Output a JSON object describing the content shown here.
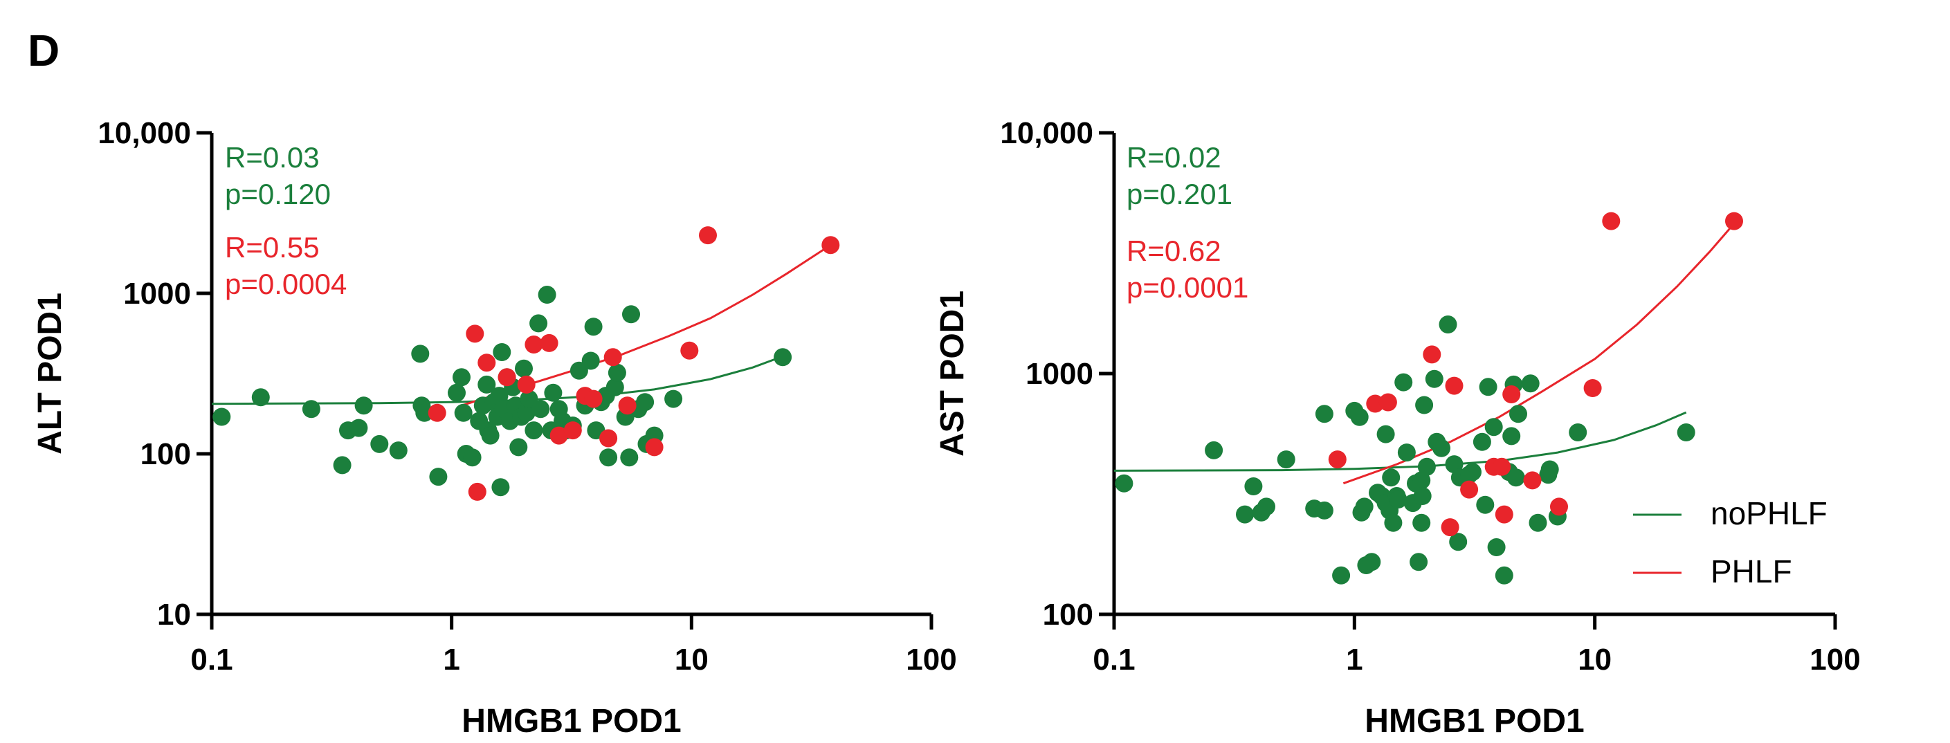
{
  "panel_label": "D",
  "colors": {
    "noPHLF": "#1b7f3c",
    "PHLF": "#e8252b",
    "axis": "#000000"
  },
  "chart_data": [
    {
      "id": "left",
      "type": "scatter",
      "xscale": "log",
      "yscale": "log",
      "xlabel": "HMGB1 POD1",
      "ylabel": "ALT POD1",
      "xlim": [
        0.1,
        100
      ],
      "ylim": [
        10,
        10000
      ],
      "xticks": [
        0.1,
        1,
        10,
        100
      ],
      "xtick_labels": [
        "0.1",
        "1",
        "10",
        "100"
      ],
      "yticks": [
        10,
        100,
        1000,
        10000
      ],
      "ytick_labels": [
        "10",
        "100",
        "1000",
        "10,000"
      ],
      "annotations": [
        {
          "series": "noPHLF",
          "lines": [
            "R=0.03",
            "p=0.120"
          ]
        },
        {
          "series": "PHLF",
          "lines": [
            "R=0.55",
            "p=0.0004"
          ]
        }
      ],
      "series": [
        {
          "name": "noPHLF",
          "points": [
            [
              0.11,
              170
            ],
            [
              0.16,
              225
            ],
            [
              0.26,
              190
            ],
            [
              0.35,
              85
            ],
            [
              0.37,
              140
            ],
            [
              0.41,
              145
            ],
            [
              0.43,
              200
            ],
            [
              0.5,
              115
            ],
            [
              0.6,
              105
            ],
            [
              0.74,
              420
            ],
            [
              0.75,
              200
            ],
            [
              0.77,
              180
            ],
            [
              0.88,
              72
            ],
            [
              1.05,
              240
            ],
            [
              1.1,
              300
            ],
            [
              1.12,
              180
            ],
            [
              1.15,
              100
            ],
            [
              1.22,
              95
            ],
            [
              1.3,
              160
            ],
            [
              1.35,
              200
            ],
            [
              1.4,
              270
            ],
            [
              1.42,
              140
            ],
            [
              1.45,
              130
            ],
            [
              1.5,
              210
            ],
            [
              1.55,
              170
            ],
            [
              1.58,
              230
            ],
            [
              1.6,
              62
            ],
            [
              1.62,
              430
            ],
            [
              1.65,
              190
            ],
            [
              1.7,
              300
            ],
            [
              1.75,
              160
            ],
            [
              1.8,
              260
            ],
            [
              1.85,
              200
            ],
            [
              1.9,
              110
            ],
            [
              1.95,
              170
            ],
            [
              2.0,
              340
            ],
            [
              2.05,
              180
            ],
            [
              2.1,
              220
            ],
            [
              2.2,
              140
            ],
            [
              2.3,
              650
            ],
            [
              2.35,
              190
            ],
            [
              2.5,
              980
            ],
            [
              2.6,
              140
            ],
            [
              2.65,
              240
            ],
            [
              2.8,
              190
            ],
            [
              2.9,
              160
            ],
            [
              3.0,
              140
            ],
            [
              3.2,
              150
            ],
            [
              3.4,
              330
            ],
            [
              3.6,
              200
            ],
            [
              3.8,
              380
            ],
            [
              3.9,
              620
            ],
            [
              4.0,
              140
            ],
            [
              4.2,
              210
            ],
            [
              4.4,
              230
            ],
            [
              4.5,
              95
            ],
            [
              4.8,
              260
            ],
            [
              4.9,
              320
            ],
            [
              5.3,
              170
            ],
            [
              5.5,
              95
            ],
            [
              5.6,
              740
            ],
            [
              6.0,
              190
            ],
            [
              6.4,
              210
            ],
            [
              6.5,
              115
            ],
            [
              7.0,
              130
            ],
            [
              8.4,
              220
            ],
            [
              24.0,
              400
            ]
          ],
          "fit": [
            [
              0.1,
              205
            ],
            [
              0.5,
              207
            ],
            [
              1,
              210
            ],
            [
              2,
              216
            ],
            [
              4,
              229
            ],
            [
              7,
              252
            ],
            [
              12,
              292
            ],
            [
              18,
              345
            ],
            [
              24,
              405
            ]
          ]
        },
        {
          "name": "PHLF",
          "points": [
            [
              0.87,
              180
            ],
            [
              1.25,
              560
            ],
            [
              1.28,
              58
            ],
            [
              1.4,
              370
            ],
            [
              1.7,
              300
            ],
            [
              2.05,
              270
            ],
            [
              2.2,
              480
            ],
            [
              2.55,
              490
            ],
            [
              2.8,
              130
            ],
            [
              3.2,
              140
            ],
            [
              3.6,
              230
            ],
            [
              3.9,
              220
            ],
            [
              4.5,
              125
            ],
            [
              4.7,
              400
            ],
            [
              5.4,
              200
            ],
            [
              7.0,
              110
            ],
            [
              9.8,
              440
            ],
            [
              11.7,
              2300
            ],
            [
              38.0,
              2000
            ]
          ],
          "fit": [
            [
              1.1,
              200
            ],
            [
              2,
              265
            ],
            [
              3,
              320
            ],
            [
              5,
              410
            ],
            [
              8,
              540
            ],
            [
              12,
              700
            ],
            [
              18,
              980
            ],
            [
              25,
              1330
            ],
            [
              38,
              2000
            ]
          ]
        }
      ]
    },
    {
      "id": "right",
      "type": "scatter",
      "xscale": "log",
      "yscale": "log",
      "xlabel": "HMGB1 POD1",
      "ylabel": "AST POD1",
      "xlim": [
        0.1,
        100
      ],
      "ylim": [
        100,
        10000
      ],
      "xticks": [
        0.1,
        1,
        10,
        100
      ],
      "xtick_labels": [
        "0.1",
        "1",
        "10",
        "100"
      ],
      "yticks": [
        100,
        1000,
        10000
      ],
      "ytick_labels": [
        "100",
        "1000",
        "10,000"
      ],
      "annotations": [
        {
          "series": "noPHLF",
          "lines": [
            "R=0.02",
            "p=0.201"
          ]
        },
        {
          "series": "PHLF",
          "lines": [
            "R=0.62",
            "p=0.0001"
          ]
        }
      ],
      "legend": {
        "position": "bottom-right",
        "entries": [
          "noPHLF",
          "PHLF"
        ]
      },
      "series": [
        {
          "name": "noPHLF",
          "points": [
            [
              0.11,
              350
            ],
            [
              0.26,
              480
            ],
            [
              0.35,
              260
            ],
            [
              0.38,
              340
            ],
            [
              0.41,
              265
            ],
            [
              0.43,
              280
            ],
            [
              0.52,
              440
            ],
            [
              0.68,
              275
            ],
            [
              0.75,
              270
            ],
            [
              0.75,
              680
            ],
            [
              0.88,
              145
            ],
            [
              1.0,
              700
            ],
            [
              1.05,
              660
            ],
            [
              1.07,
              265
            ],
            [
              1.1,
              280
            ],
            [
              1.12,
              160
            ],
            [
              1.18,
              165
            ],
            [
              1.25,
              320
            ],
            [
              1.3,
              310
            ],
            [
              1.35,
              290
            ],
            [
              1.35,
              560
            ],
            [
              1.4,
              270
            ],
            [
              1.42,
              370
            ],
            [
              1.45,
              240
            ],
            [
              1.5,
              310
            ],
            [
              1.52,
              300
            ],
            [
              1.6,
              920
            ],
            [
              1.65,
              470
            ],
            [
              1.75,
              290
            ],
            [
              1.8,
              350
            ],
            [
              1.85,
              165
            ],
            [
              1.9,
              360
            ],
            [
              1.9,
              240
            ],
            [
              1.92,
              310
            ],
            [
              1.95,
              740
            ],
            [
              2.0,
              410
            ],
            [
              2.15,
              950
            ],
            [
              2.2,
              520
            ],
            [
              2.3,
              490
            ],
            [
              2.45,
              1600
            ],
            [
              2.6,
              420
            ],
            [
              2.7,
              200
            ],
            [
              2.75,
              370
            ],
            [
              3.0,
              380
            ],
            [
              3.1,
              390
            ],
            [
              3.4,
              520
            ],
            [
              3.5,
              285
            ],
            [
              3.6,
              880
            ],
            [
              3.8,
              600
            ],
            [
              3.9,
              190
            ],
            [
              4.2,
              145
            ],
            [
              4.4,
              390
            ],
            [
              4.5,
              550
            ],
            [
              4.6,
              900
            ],
            [
              4.7,
              370
            ],
            [
              4.8,
              680
            ],
            [
              5.4,
              910
            ],
            [
              5.8,
              240
            ],
            [
              6.4,
              380
            ],
            [
              6.5,
              400
            ],
            [
              7.0,
              255
            ],
            [
              8.5,
              570
            ],
            [
              24.0,
              570
            ]
          ],
          "fit": [
            [
              0.1,
              395
            ],
            [
              0.5,
              397
            ],
            [
              1,
              402
            ],
            [
              2,
              412
            ],
            [
              4,
              434
            ],
            [
              7,
              470
            ],
            [
              12,
              530
            ],
            [
              18,
              610
            ],
            [
              24,
              690
            ]
          ]
        },
        {
          "name": "PHLF",
          "points": [
            [
              0.85,
              440
            ],
            [
              1.22,
              750
            ],
            [
              1.38,
              760
            ],
            [
              2.1,
              1200
            ],
            [
              2.5,
              230
            ],
            [
              2.6,
              890
            ],
            [
              3.0,
              330
            ],
            [
              3.8,
              410
            ],
            [
              4.1,
              410
            ],
            [
              4.2,
              260
            ],
            [
              4.5,
              820
            ],
            [
              5.5,
              360
            ],
            [
              7.1,
              280
            ],
            [
              9.8,
              870
            ],
            [
              11.7,
              4300
            ],
            [
              38.0,
              4300
            ]
          ],
          "fit": [
            [
              0.9,
              350
            ],
            [
              1.5,
              420
            ],
            [
              2.5,
              520
            ],
            [
              4,
              660
            ],
            [
              6,
              840
            ],
            [
              10,
              1150
            ],
            [
              15,
              1600
            ],
            [
              22,
              2300
            ],
            [
              30,
              3200
            ],
            [
              38,
              4200
            ]
          ]
        }
      ]
    }
  ]
}
